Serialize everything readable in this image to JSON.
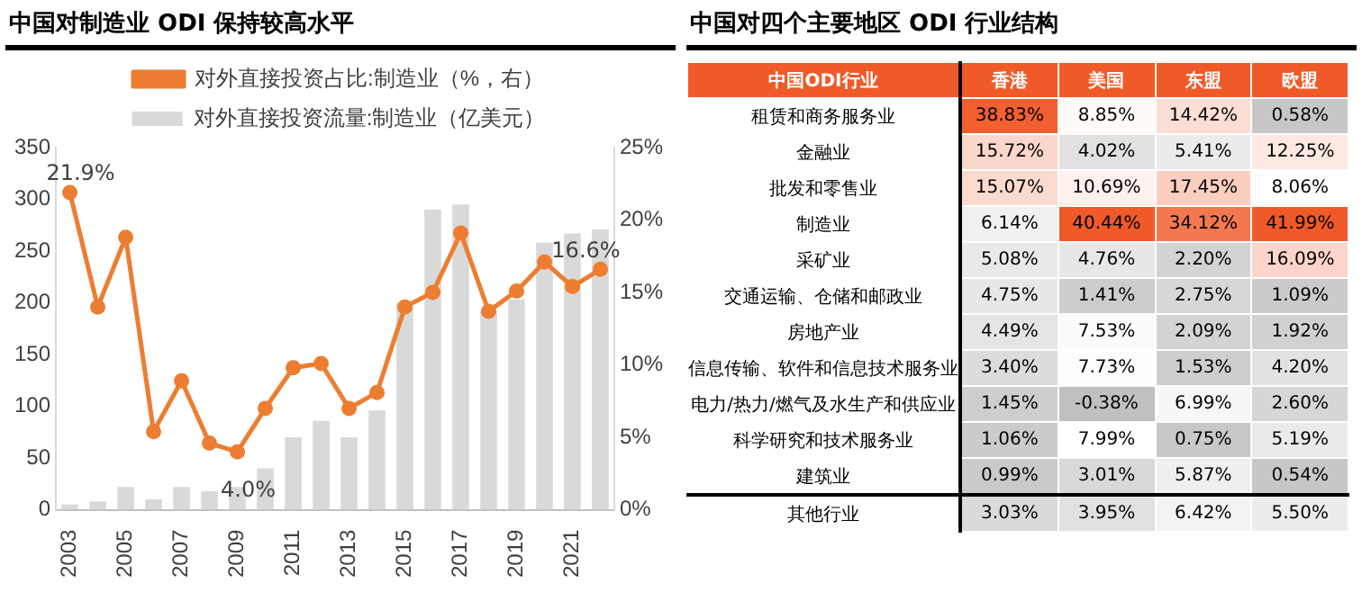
{
  "chart_data": [
    {
      "type": "bar",
      "title": "中国对制造业 ODI 保持较高水平",
      "categories": [
        "2003",
        null,
        "2005",
        null,
        "2007",
        null,
        "2009",
        null,
        "2011",
        null,
        "2013",
        null,
        "2015",
        null,
        "2017",
        null,
        "2019",
        null,
        "2021",
        null
      ],
      "series": [
        {
          "name": "对外直接投资流量:制造业（亿美元）",
          "type": "bar",
          "color": "#d9d9d9",
          "values": [
            5,
            8,
            22,
            10,
            22,
            18,
            22,
            40,
            70,
            86,
            70,
            96,
            200,
            290,
            295,
            192,
            203,
            258,
            267,
            271
          ]
        },
        {
          "name": "对外直接投资占比:制造业（%，右）",
          "type": "line",
          "axis": "y2",
          "color": "#ed7d31",
          "values": [
            21.9,
            14.0,
            18.8,
            5.4,
            8.9,
            4.6,
            4.0,
            7.0,
            9.8,
            10.1,
            7.0,
            8.1,
            14.0,
            15.0,
            19.1,
            13.7,
            15.1,
            17.1,
            15.4,
            16.6
          ],
          "value_labels": [
            "21.9%",
            null,
            null,
            null,
            null,
            null,
            "4.0%",
            null,
            null,
            null,
            null,
            null,
            null,
            null,
            null,
            null,
            null,
            null,
            null,
            "16.6%"
          ]
        }
      ],
      "ylim": [
        0,
        350
      ],
      "yticks": [
        0,
        50,
        100,
        150,
        200,
        250,
        300,
        350
      ],
      "y2lim": [
        0,
        25
      ],
      "y2ticks": [
        {
          "value": 0,
          "label": "0%"
        },
        {
          "value": 5,
          "label": "5%"
        },
        {
          "value": 10,
          "label": "10%"
        },
        {
          "value": 15,
          "label": "15%"
        },
        {
          "value": 20,
          "label": "20%"
        },
        {
          "value": 25,
          "label": "25%"
        }
      ],
      "legend": "top",
      "grid": false,
      "marker": "circle"
    },
    {
      "type": "heatmap",
      "title": "中国对四个主要地区 ODI 行业结构",
      "ylabel": "中国ODI行业",
      "categories": [
        "香港",
        "美国",
        "东盟",
        "欧盟"
      ],
      "y_categories": [
        "租赁和商务服务业",
        "金融业",
        "批发和零售业",
        "制造业",
        "采矿业",
        "交通运输、仓储和邮政业",
        "房地产业",
        "信息传输、软件和信息技术服务业",
        "电力/热力/燃气及水生产和供应业",
        "科学研究和技术服务业",
        "建筑业",
        "其他行业"
      ],
      "cells": [
        [
          38.83,
          8.85,
          14.42,
          0.58
        ],
        [
          15.72,
          4.02,
          5.41,
          12.25
        ],
        [
          15.07,
          10.69,
          17.45,
          8.06
        ],
        [
          6.14,
          40.44,
          34.12,
          41.99
        ],
        [
          5.08,
          4.76,
          2.2,
          16.09
        ],
        [
          4.75,
          1.41,
          2.75,
          1.09
        ],
        [
          4.49,
          7.53,
          2.09,
          1.92
        ],
        [
          3.4,
          7.73,
          1.53,
          4.2
        ],
        [
          1.45,
          -0.38,
          6.99,
          2.6
        ],
        [
          1.06,
          7.99,
          0.75,
          5.19
        ],
        [
          0.99,
          3.01,
          5.87,
          0.54
        ],
        [
          3.03,
          3.95,
          6.42,
          5.5
        ]
      ],
      "cell_labels": [
        [
          "38.83%",
          "8.85%",
          "14.42%",
          "0.58%"
        ],
        [
          "15.72%",
          "4.02%",
          "5.41%",
          "12.25%"
        ],
        [
          "15.07%",
          "10.69%",
          "17.45%",
          "8.06%"
        ],
        [
          "6.14%",
          "40.44%",
          "34.12%",
          "41.99%"
        ],
        [
          "5.08%",
          "4.76%",
          "2.20%",
          "16.09%"
        ],
        [
          "4.75%",
          "1.41%",
          "2.75%",
          "1.09%"
        ],
        [
          "4.49%",
          "7.53%",
          "2.09%",
          "1.92%"
        ],
        [
          "3.40%",
          "7.73%",
          "1.53%",
          "4.20%"
        ],
        [
          "1.45%",
          "-0.38%",
          "6.99%",
          "2.60%"
        ],
        [
          "1.06%",
          "7.99%",
          "0.75%",
          "5.19%"
        ],
        [
          "0.99%",
          "3.01%",
          "5.87%",
          "0.54%"
        ],
        [
          "3.03%",
          "3.95%",
          "6.42%",
          "5.50%"
        ]
      ]
    }
  ]
}
